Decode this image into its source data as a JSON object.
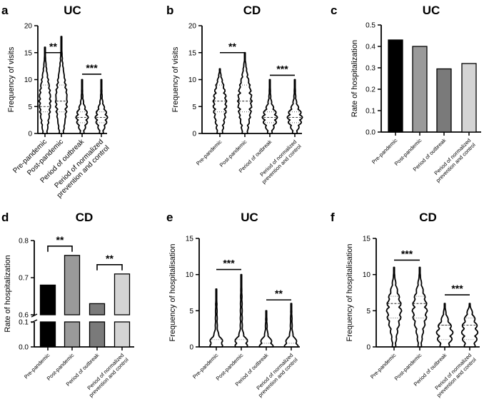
{
  "chart_data": [
    {
      "panel": "a",
      "type": "violin",
      "title": "UC",
      "ylabel": "Frequency of visits",
      "ylim": [
        0,
        20
      ],
      "yticks": [
        0,
        5,
        10,
        15,
        20
      ],
      "categories": [
        "Pre-pandemic",
        "Post-pandemic",
        "Period of outbreak",
        "Period of normalized prevention and control"
      ],
      "median": [
        5,
        6,
        3,
        3
      ],
      "quartiles": [
        [
          4,
          9
        ],
        [
          4,
          9
        ],
        [
          2,
          4
        ],
        [
          2,
          4
        ]
      ],
      "max": [
        16,
        18,
        10,
        10
      ],
      "significance": [
        {
          "label": "**",
          "between": [
            0,
            1
          ],
          "y": 15
        },
        {
          "label": "***",
          "between": [
            2,
            3
          ],
          "y": 11
        }
      ]
    },
    {
      "panel": "b",
      "type": "violin",
      "title": "CD",
      "ylabel": "Frequency of visits",
      "ylim": [
        0,
        20
      ],
      "yticks": [
        0,
        5,
        10,
        15,
        20
      ],
      "categories": [
        "Pre-pandemic",
        "Post-pandemic",
        "Period of outbreak",
        "Period of normalized prevention and control"
      ],
      "median": [
        6,
        6,
        3,
        3
      ],
      "quartiles": [
        [
          4,
          9
        ],
        [
          4,
          9
        ],
        [
          2,
          4
        ],
        [
          2,
          4
        ]
      ],
      "max": [
        12,
        15,
        10,
        10
      ],
      "significance": [
        {
          "label": "**",
          "between": [
            0,
            1
          ],
          "y": 15
        },
        {
          "label": "***",
          "between": [
            2,
            3
          ],
          "y": 10.8
        }
      ]
    },
    {
      "panel": "c",
      "type": "bar",
      "title": "UC",
      "ylabel": "Rate of hospitalization",
      "ylim": [
        0,
        0.5
      ],
      "yticks": [
        0.0,
        0.1,
        0.2,
        0.3,
        0.4,
        0.5
      ],
      "ytick_labels": [
        "0.0",
        "0.1",
        "0.2",
        "0.3",
        "0.4",
        "0.5"
      ],
      "categories": [
        "Pre-pandemic",
        "Post-pandemic",
        "Period of outbreak",
        "Period of normalized prevention and control"
      ],
      "values": [
        0.43,
        0.4,
        0.295,
        0.32
      ],
      "colors": [
        "#000000",
        "#9a9a9a",
        "#7a7a7a",
        "#d4d4d4"
      ]
    },
    {
      "panel": "d",
      "type": "bar",
      "title": "CD",
      "ylabel": "Rate of hospitalization",
      "broken_axis": {
        "lower": [
          0,
          0.1
        ],
        "upper": [
          0.6,
          0.8
        ]
      },
      "yticks": [
        0.0,
        0.1,
        0.6,
        0.7,
        0.8
      ],
      "ytick_labels": [
        "0.0",
        "0.1",
        "0.6",
        "0.7",
        "0.8"
      ],
      "categories": [
        "Pre-pandemic",
        "Post-pandemic",
        "Period of outbreak",
        "Period of normalized prevention and control"
      ],
      "values": [
        0.68,
        0.76,
        0.63,
        0.71
      ],
      "colors": [
        "#000000",
        "#9a9a9a",
        "#7a7a7a",
        "#d4d4d4"
      ],
      "significance": [
        {
          "label": "**",
          "between": [
            0,
            1
          ],
          "y": 0.785
        },
        {
          "label": "**",
          "between": [
            2,
            3
          ],
          "y": 0.735
        }
      ]
    },
    {
      "panel": "e",
      "type": "violin",
      "title": "UC",
      "ylabel": "Frequency of hospitalisation",
      "ylim": [
        0,
        15
      ],
      "yticks": [
        0,
        5,
        10,
        15
      ],
      "categories": [
        "Pre-pandemic",
        "Post-pandemic",
        "Period of outbreak",
        "Period of normalized prevention and control"
      ],
      "median": [
        0,
        0,
        0,
        0
      ],
      "quartiles": [
        [
          0,
          1
        ],
        [
          0,
          1
        ],
        [
          0,
          0.5
        ],
        [
          0,
          0.5
        ]
      ],
      "max": [
        8,
        10,
        5,
        6
      ],
      "significance": [
        {
          "label": "***",
          "between": [
            0,
            1
          ],
          "y": 10.7
        },
        {
          "label": "**",
          "between": [
            2,
            3
          ],
          "y": 6.5
        }
      ]
    },
    {
      "panel": "f",
      "type": "violin",
      "title": "CD",
      "ylabel": "Frequency of hospitalisation",
      "ylim": [
        0,
        15
      ],
      "yticks": [
        0,
        5,
        10,
        15
      ],
      "categories": [
        "Pre-pandemic",
        "Post-pandemic",
        "Period of outbreak",
        "Period of normalized prevention and control"
      ],
      "median": [
        6,
        6,
        3,
        3
      ],
      "quartiles": [
        [
          4,
          7
        ],
        [
          4,
          7
        ],
        [
          1,
          3
        ],
        [
          1,
          4
        ]
      ],
      "max": [
        11,
        11,
        6,
        6
      ],
      "significance": [
        {
          "label": "***",
          "between": [
            0,
            1
          ],
          "y": 12
        },
        {
          "label": "***",
          "between": [
            2,
            3
          ],
          "y": 7.2
        }
      ]
    }
  ]
}
